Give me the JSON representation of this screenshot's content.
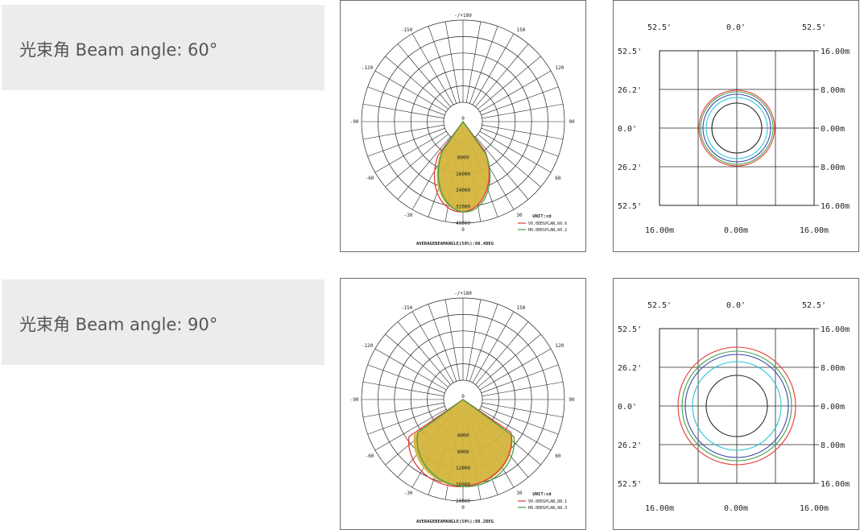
{
  "rows": [
    {
      "label": "光束角 Beam angle: 60°",
      "polar": {
        "angle_labels": [
          "-/+180",
          "-150",
          "150",
          "-120",
          "120",
          "-90",
          "90",
          "-60",
          "60",
          "-30",
          "30",
          "0"
        ],
        "radial_labels": [
          "0",
          "8000",
          "16000",
          "24000",
          "32000",
          "40000"
        ],
        "unit": "UNIT:cd",
        "legend": [
          "V0.0DEGPLAN,60.6",
          "H0.0DEGPLAN,60.2"
        ],
        "footer": "AVERAGEBEAMANGLE(50%):60.4DEG",
        "curve_colors": [
          "#e53935",
          "#43a047"
        ],
        "fill_color": "#d4b43c"
      },
      "isolux": {
        "top_labels": [
          "52.5'",
          "0.0'",
          "52.5'"
        ],
        "left_labels": [
          "52.5'",
          "26.2'",
          "0.0'",
          "26.2'",
          "52.5'"
        ],
        "right_labels": [
          "16.00m",
          "8.00m",
          "0.00m",
          "8.00m",
          "16.00m"
        ],
        "bottom_labels": [
          "16.00m",
          "0.00m",
          "16.00m"
        ],
        "ring_colors": [
          "#e53935",
          "#43a047",
          "#3949ab",
          "#26c6da",
          "#222222"
        ]
      }
    },
    {
      "label": "光束角 Beam angle: 90°",
      "polar": {
        "angle_labels": [
          "-/+180",
          "-150",
          "150",
          "-120",
          "120",
          "-90",
          "90",
          "-60",
          "60",
          "-30",
          "30",
          "0"
        ],
        "radial_labels": [
          "0",
          "4000",
          "8000",
          "12000",
          "16000",
          "20000"
        ],
        "unit": "UNIT:cd",
        "legend": [
          "V0.0DEGPLAN,88.1",
          "H0.0DEGPLAN,88.3"
        ],
        "footer": "AVERAGEBEAMANGLE(50%):88.2DEG",
        "curve_colors": [
          "#e53935",
          "#43a047"
        ],
        "fill_color": "#d4b43c"
      },
      "isolux": {
        "top_labels": [
          "52.5'",
          "0.0'",
          "52.5'"
        ],
        "left_labels": [
          "52.5'",
          "26.2'",
          "0.0'",
          "26.2'",
          "52.5'"
        ],
        "right_labels": [
          "16.00m",
          "8.00m",
          "0.00m",
          "8.00m",
          "16.00m"
        ],
        "bottom_labels": [
          "16.00m",
          "0.00m",
          "16.00m"
        ],
        "ring_colors": [
          "#e53935",
          "#43a047",
          "#3949ab",
          "#26c6da",
          "#222222"
        ]
      }
    }
  ]
}
